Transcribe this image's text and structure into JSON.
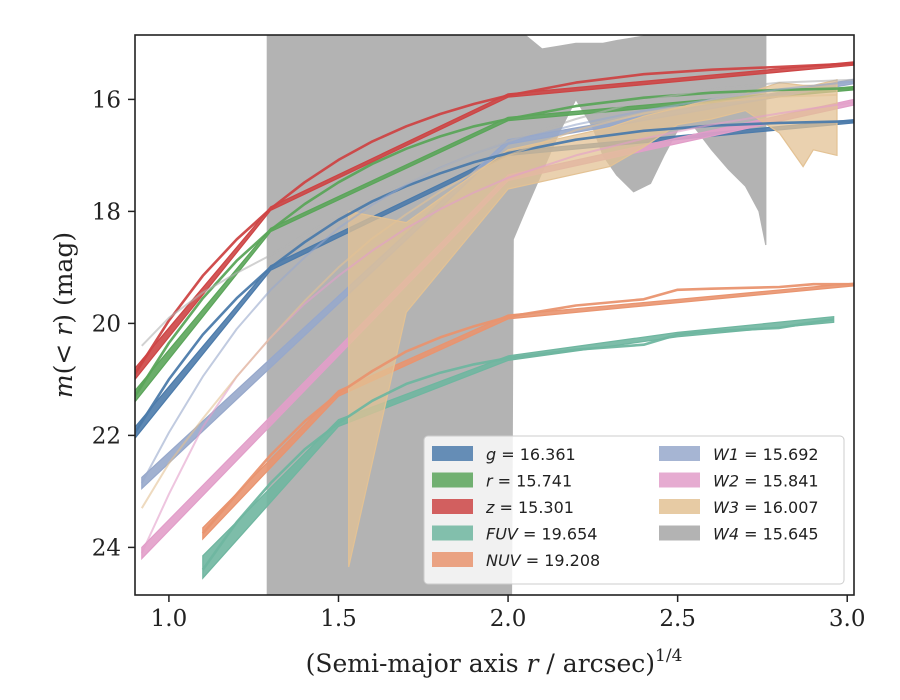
{
  "chart_data": {
    "type": "line",
    "xlabel": "(Semi-major axis r / arcsec)^1/4",
    "xlabel_parts": {
      "main": "(Semi-major axis ",
      "var": "r",
      "mid": " / arcsec)",
      "sup": "1/4"
    },
    "ylabel": "m(< r) (mag)",
    "ylabel_parts": {
      "m": "m",
      "open": "(",
      "lt": "< ",
      "r": "r",
      "close": ")",
      "unit": " (mag)"
    },
    "xlim": [
      0.9,
      3.02
    ],
    "ylim": [
      24.85,
      14.85
    ],
    "y_inverted": true,
    "x_ticks": [
      1.0,
      1.5,
      2.0,
      2.5,
      3.0
    ],
    "x_tick_labels": [
      "1.0",
      "1.5",
      "2.0",
      "2.5",
      "3.0"
    ],
    "y_ticks": [
      16,
      18,
      20,
      22,
      24
    ],
    "y_tick_labels": [
      "16",
      "18",
      "20",
      "22",
      "24"
    ],
    "grid": false,
    "legend_placement": "lower-right",
    "series": [
      {
        "name": "g",
        "label_value": "16.361",
        "color": "#4c7bab",
        "model": [
          [
            0.9,
            21.95
          ],
          [
            1.0,
            21.0
          ],
          [
            1.1,
            20.2
          ],
          [
            1.2,
            19.55
          ],
          [
            1.3,
            19.0
          ],
          [
            1.4,
            18.55
          ],
          [
            1.5,
            18.15
          ],
          [
            1.6,
            17.82
          ],
          [
            1.7,
            17.55
          ],
          [
            1.8,
            17.32
          ],
          [
            1.9,
            17.12
          ],
          [
            2.0,
            16.96
          ],
          [
            2.2,
            16.72
          ],
          [
            2.4,
            16.56
          ],
          [
            2.6,
            16.47
          ],
          [
            2.8,
            16.42
          ],
          [
            3.02,
            16.39
          ]
        ],
        "band": [
          [
            0.9,
            21.85,
            22.05
          ],
          [
            1.3,
            18.97,
            19.05
          ],
          [
            2.0,
            16.93,
            17.0
          ],
          [
            3.02,
            16.36,
            16.42
          ]
        ]
      },
      {
        "name": "r",
        "label_value": "15.741",
        "color": "#5ba55a",
        "model": [
          [
            0.9,
            21.3
          ],
          [
            1.0,
            20.35
          ],
          [
            1.1,
            19.55
          ],
          [
            1.2,
            18.88
          ],
          [
            1.3,
            18.33
          ],
          [
            1.4,
            17.87
          ],
          [
            1.5,
            17.48
          ],
          [
            1.6,
            17.15
          ],
          [
            1.7,
            16.88
          ],
          [
            1.8,
            16.66
          ],
          [
            1.9,
            16.48
          ],
          [
            2.0,
            16.35
          ],
          [
            2.2,
            16.12
          ],
          [
            2.4,
            15.97
          ],
          [
            2.6,
            15.88
          ],
          [
            2.8,
            15.83
          ],
          [
            3.02,
            15.8
          ]
        ],
        "band": [
          [
            0.9,
            21.2,
            21.4
          ],
          [
            1.3,
            18.3,
            18.36
          ],
          [
            2.0,
            16.32,
            16.38
          ],
          [
            3.02,
            15.77,
            15.83
          ]
        ]
      },
      {
        "name": "z",
        "label_value": "15.301",
        "color": "#cd4545",
        "model": [
          [
            0.9,
            20.9
          ],
          [
            1.0,
            19.95
          ],
          [
            1.1,
            19.15
          ],
          [
            1.2,
            18.5
          ],
          [
            1.3,
            17.95
          ],
          [
            1.4,
            17.48
          ],
          [
            1.5,
            17.08
          ],
          [
            1.6,
            16.75
          ],
          [
            1.7,
            16.48
          ],
          [
            1.8,
            16.26
          ],
          [
            1.9,
            16.08
          ],
          [
            2.0,
            15.93
          ],
          [
            2.2,
            15.7
          ],
          [
            2.4,
            15.55
          ],
          [
            2.6,
            15.47
          ],
          [
            2.8,
            15.42
          ],
          [
            3.02,
            15.36
          ]
        ],
        "band": [
          [
            0.9,
            20.8,
            21.0
          ],
          [
            1.3,
            17.92,
            17.98
          ],
          [
            2.0,
            15.9,
            15.96
          ],
          [
            3.02,
            15.33,
            15.39
          ]
        ]
      },
      {
        "name": "FUV",
        "label_value": "19.654",
        "color": "#6fb6a0",
        "model": [
          [
            1.1,
            24.4
          ],
          [
            1.2,
            23.55
          ],
          [
            1.3,
            22.85
          ],
          [
            1.4,
            22.25
          ],
          [
            1.5,
            21.78
          ],
          [
            1.6,
            21.38
          ],
          [
            1.7,
            21.08
          ],
          [
            1.8,
            20.88
          ],
          [
            1.9,
            20.73
          ],
          [
            2.0,
            20.62
          ],
          [
            2.2,
            20.47
          ],
          [
            2.4,
            20.38
          ],
          [
            2.5,
            20.2
          ],
          [
            2.6,
            20.14
          ],
          [
            2.8,
            20.08
          ],
          [
            2.9,
            19.98
          ],
          [
            2.96,
            19.93
          ]
        ],
        "band": [
          [
            1.1,
            24.15,
            24.55
          ],
          [
            1.5,
            21.72,
            21.84
          ],
          [
            2.0,
            20.58,
            20.66
          ],
          [
            2.5,
            20.16,
            20.24
          ],
          [
            2.96,
            19.88,
            19.98
          ]
        ]
      },
      {
        "name": "NUV",
        "label_value": "19.208",
        "color": "#e9946f",
        "model": [
          [
            1.1,
            23.75
          ],
          [
            1.2,
            23.05
          ],
          [
            1.3,
            22.35
          ],
          [
            1.4,
            21.75
          ],
          [
            1.5,
            21.25
          ],
          [
            1.6,
            20.85
          ],
          [
            1.7,
            20.5
          ],
          [
            1.8,
            20.25
          ],
          [
            1.9,
            20.05
          ],
          [
            2.0,
            19.88
          ],
          [
            2.2,
            19.68
          ],
          [
            2.4,
            19.57
          ],
          [
            2.5,
            19.4
          ],
          [
            2.6,
            19.38
          ],
          [
            2.8,
            19.35
          ],
          [
            2.9,
            19.3
          ],
          [
            3.02,
            19.3
          ]
        ],
        "band": [
          [
            1.1,
            23.65,
            23.85
          ],
          [
            1.5,
            21.2,
            21.3
          ],
          [
            2.0,
            19.85,
            19.92
          ],
          [
            3.02,
            19.28,
            19.33
          ]
        ]
      },
      {
        "name": "W1",
        "label_value": "15.692",
        "color": "#97a8cb",
        "model": [
          [
            0.92,
            22.85
          ],
          [
            1.0,
            21.95
          ],
          [
            1.1,
            20.95
          ],
          [
            1.2,
            20.1
          ],
          [
            1.3,
            19.4
          ],
          [
            1.4,
            18.82
          ],
          [
            1.5,
            18.3
          ],
          [
            1.6,
            17.88
          ],
          [
            1.7,
            17.52
          ],
          [
            1.8,
            17.22
          ],
          [
            1.9,
            16.97
          ],
          [
            2.0,
            16.76
          ],
          [
            2.2,
            16.45
          ],
          [
            2.4,
            16.2
          ],
          [
            2.6,
            16.0
          ],
          [
            2.8,
            15.82
          ],
          [
            3.02,
            15.68
          ]
        ],
        "band": [
          [
            0.92,
            22.75,
            22.95
          ],
          [
            2.0,
            16.72,
            16.8
          ],
          [
            3.02,
            15.64,
            15.72
          ]
        ]
      },
      {
        "name": "W2",
        "label_value": "15.841",
        "color": "#e29ec9",
        "model": [
          [
            0.92,
            24.1
          ],
          [
            1.0,
            23.05
          ],
          [
            1.1,
            21.85
          ],
          [
            1.2,
            20.95
          ],
          [
            1.3,
            20.25
          ],
          [
            1.4,
            19.65
          ],
          [
            1.5,
            19.15
          ],
          [
            1.6,
            18.7
          ],
          [
            1.7,
            18.3
          ],
          [
            1.8,
            17.96
          ],
          [
            1.9,
            17.66
          ],
          [
            2.0,
            17.4
          ],
          [
            2.2,
            17.0
          ],
          [
            2.4,
            16.7
          ],
          [
            2.6,
            16.45
          ],
          [
            2.8,
            16.25
          ],
          [
            3.02,
            16.05
          ]
        ],
        "band": [
          [
            0.92,
            24.0,
            24.2
          ],
          [
            2.0,
            17.35,
            17.45
          ],
          [
            3.02,
            16.0,
            16.1
          ]
        ]
      },
      {
        "name": "W3",
        "label_value": "16.007",
        "color": "#e3c294",
        "model": [
          [
            0.92,
            23.3
          ],
          [
            1.0,
            22.5
          ],
          [
            1.1,
            21.7
          ],
          [
            1.2,
            20.95
          ],
          [
            1.3,
            20.25
          ],
          [
            1.4,
            19.6
          ],
          [
            1.5,
            19.0
          ],
          [
            1.6,
            18.48
          ],
          [
            1.7,
            18.05
          ],
          [
            1.8,
            17.65
          ],
          [
            1.9,
            17.3
          ],
          [
            2.0,
            17.0
          ],
          [
            2.2,
            16.55
          ],
          [
            2.4,
            16.25
          ],
          [
            2.6,
            16.05
          ],
          [
            2.8,
            15.95
          ],
          [
            2.97,
            15.92
          ]
        ],
        "band": [
          [
            1.53,
            24.35,
            18.0
          ],
          [
            1.7,
            19.8,
            18.2
          ],
          [
            2.0,
            17.6,
            16.9
          ],
          [
            2.3,
            17.2,
            16.5
          ],
          [
            2.4,
            16.85,
            16.3
          ],
          [
            2.5,
            16.45,
            16.15
          ],
          [
            2.6,
            16.35,
            16.0
          ],
          [
            2.7,
            16.2,
            15.9
          ],
          [
            2.8,
            16.6,
            15.7
          ],
          [
            2.87,
            17.2,
            15.75
          ],
          [
            2.9,
            16.9,
            15.75
          ],
          [
            2.97,
            17.0,
            15.65
          ]
        ]
      },
      {
        "name": "W4",
        "label_value": "15.645",
        "color": "#b3b3b3",
        "model": [
          [
            0.92,
            20.4
          ],
          [
            1.0,
            19.9
          ],
          [
            1.1,
            19.45
          ],
          [
            1.2,
            19.1
          ],
          [
            1.3,
            18.78
          ],
          [
            1.4,
            18.42
          ],
          [
            1.5,
            18.08
          ],
          [
            1.6,
            17.77
          ],
          [
            1.7,
            17.5
          ],
          [
            1.8,
            17.23
          ],
          [
            1.9,
            16.97
          ],
          [
            2.0,
            16.75
          ],
          [
            2.2,
            16.35
          ],
          [
            2.4,
            16.02
          ],
          [
            2.6,
            15.82
          ],
          [
            2.8,
            15.7
          ],
          [
            3.02,
            15.65
          ]
        ],
        "band": [
          [
            1.29,
            24.85,
            14.85
          ],
          [
            1.53,
            24.85,
            14.85
          ],
          [
            1.69,
            24.85,
            14.85
          ],
          [
            1.99,
            24.85,
            14.85
          ],
          [
            2.01,
            24.85,
            14.85
          ],
          [
            2.015,
            18.5,
            14.85
          ],
          [
            2.05,
            18.0,
            14.85
          ],
          [
            2.1,
            17.3,
            15.1
          ],
          [
            2.15,
            16.6,
            15.05
          ],
          [
            2.2,
            16.0,
            15.0
          ],
          [
            2.25,
            16.5,
            15.0
          ],
          [
            2.28,
            17.0,
            15.0
          ],
          [
            2.32,
            17.35,
            14.95
          ],
          [
            2.37,
            17.65,
            14.9
          ],
          [
            2.42,
            17.5,
            14.85
          ],
          [
            2.46,
            17.0,
            14.85
          ],
          [
            2.5,
            16.55,
            14.85
          ],
          [
            2.55,
            16.5,
            14.85
          ],
          [
            2.6,
            16.9,
            14.85
          ],
          [
            2.65,
            17.25,
            14.85
          ],
          [
            2.7,
            17.55,
            14.85
          ],
          [
            2.74,
            18.0,
            14.85
          ],
          [
            2.76,
            18.6,
            14.85
          ]
        ]
      }
    ]
  }
}
